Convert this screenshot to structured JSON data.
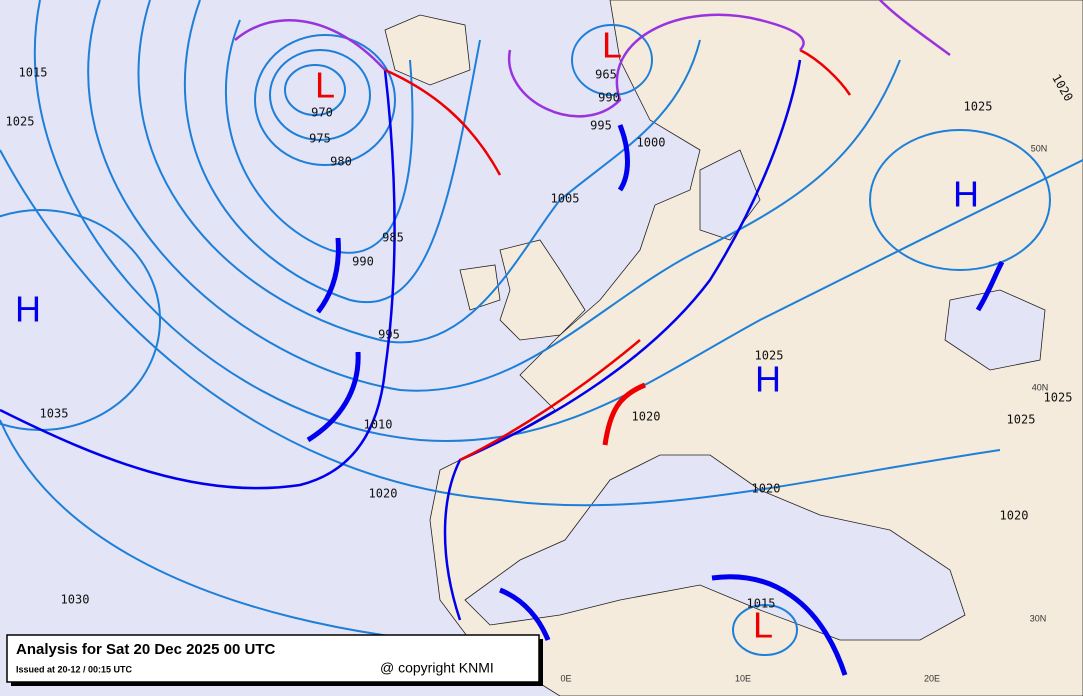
{
  "header": {
    "title": "Analysis for Sat 20 Dec 2025 00 UTC",
    "issued": "Issued at 20-12 / 00:15 UTC",
    "copyright": "@ copyright KNMI"
  },
  "pressure_centers": [
    "H",
    "L",
    "L",
    "H",
    "H",
    "L"
  ],
  "isobar_labels": [
    1015,
    1025,
    970,
    975,
    980,
    985,
    990,
    995,
    965,
    990,
    995,
    1000,
    1005,
    1010,
    1020,
    1035,
    1030,
    1025,
    1020,
    1025,
    1020,
    1020,
    1015,
    1025,
    1025,
    1020
  ],
  "grid_labels": [
    "50N",
    "40N",
    "30N",
    "0E",
    "10E",
    "20E"
  ]
}
